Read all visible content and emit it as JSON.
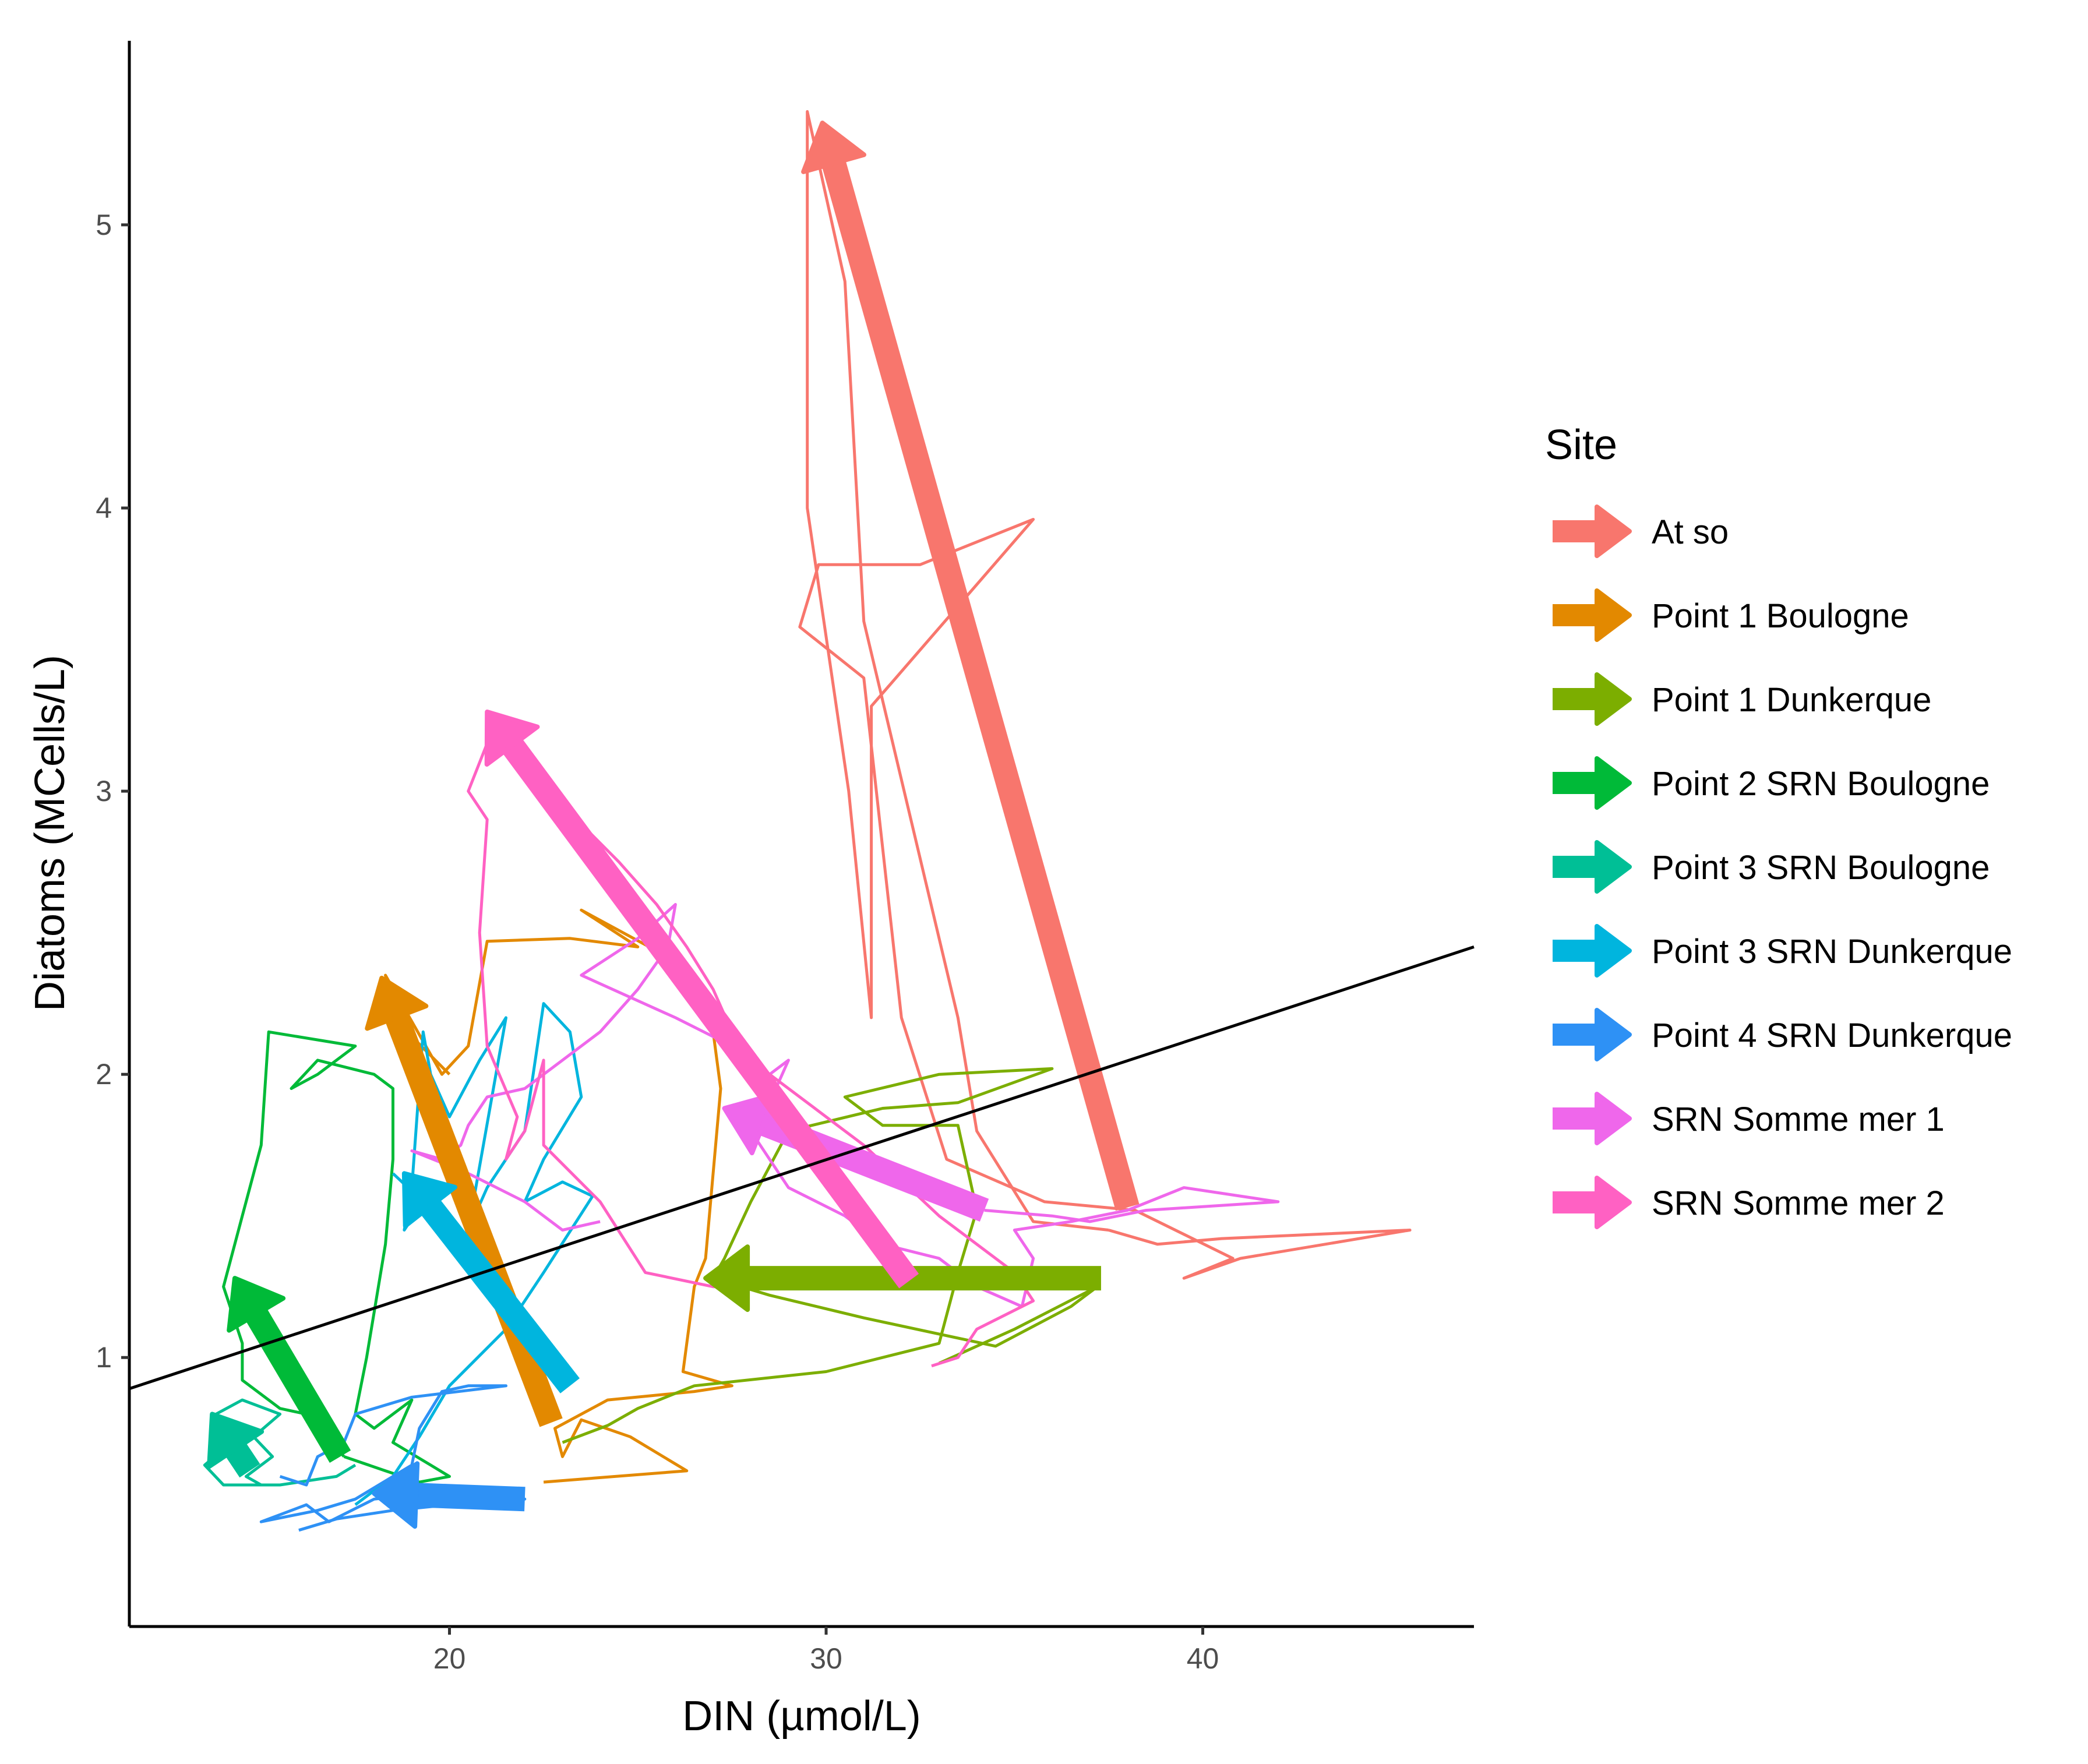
{
  "chart_data": {
    "type": "line",
    "title": "",
    "xlabel": "DIN (µmol/L)",
    "ylabel": "Diatoms (MCells/L)",
    "xlim": [
      11.5,
      47.2
    ],
    "ylim": [
      0.05,
      5.65
    ],
    "x_ticks": [
      {
        "value": 20,
        "label": "20"
      },
      {
        "value": 30,
        "label": "30"
      },
      {
        "value": 40,
        "label": "40"
      }
    ],
    "y_ticks": [
      {
        "value": 1,
        "label": "1"
      },
      {
        "value": 2,
        "label": "2"
      },
      {
        "value": 3,
        "label": "3"
      },
      {
        "value": 4,
        "label": "4"
      },
      {
        "value": 5,
        "label": "5"
      }
    ],
    "legend_title": "Site",
    "legend_position": "right",
    "regression_line": {
      "color": "#000000",
      "from": [
        11.5,
        0.89
      ],
      "to": [
        47.2,
        2.45
      ]
    },
    "series": [
      {
        "name": "At so",
        "color": "#F8766D",
        "path": [
          [
            37.5,
            1.45
          ],
          [
            38.8,
            1.4
          ],
          [
            40.5,
            1.42
          ],
          [
            45.5,
            1.45
          ],
          [
            41.0,
            1.35
          ],
          [
            39.5,
            1.28
          ],
          [
            40.8,
            1.35
          ],
          [
            38.2,
            1.52
          ],
          [
            35.8,
            1.55
          ],
          [
            33.2,
            1.7
          ],
          [
            32.0,
            2.2
          ],
          [
            31.0,
            3.4
          ],
          [
            29.3,
            3.58
          ],
          [
            29.8,
            3.8
          ],
          [
            31.2,
            3.8
          ],
          [
            32.5,
            3.8
          ],
          [
            35.5,
            3.96
          ],
          [
            31.2,
            3.3
          ],
          [
            31.2,
            2.2
          ],
          [
            30.6,
            3.0
          ],
          [
            29.5,
            4.0
          ],
          [
            29.5,
            5.4
          ],
          [
            30.5,
            4.8
          ],
          [
            31.0,
            3.6
          ],
          [
            33.5,
            2.2
          ],
          [
            34.0,
            1.8
          ],
          [
            35.5,
            1.48
          ],
          [
            37.5,
            1.45
          ]
        ],
        "arrow": {
          "from": [
            38.0,
            1.53
          ],
          "to": [
            29.9,
            5.36
          ]
        }
      },
      {
        "name": "Point 1 Boulogne",
        "color": "#E38900",
        "path": [
          [
            22.5,
            0.56
          ],
          [
            26.3,
            0.6
          ],
          [
            24.8,
            0.72
          ],
          [
            23.5,
            0.78
          ],
          [
            23.0,
            0.65
          ],
          [
            22.8,
            0.75
          ],
          [
            24.2,
            0.85
          ],
          [
            26.5,
            0.88
          ],
          [
            27.5,
            0.9
          ],
          [
            26.2,
            0.95
          ],
          [
            26.5,
            1.25
          ],
          [
            26.8,
            1.35
          ],
          [
            27.2,
            1.95
          ],
          [
            27.0,
            2.15
          ],
          [
            26.0,
            2.4
          ],
          [
            23.5,
            2.58
          ],
          [
            25.0,
            2.45
          ],
          [
            23.2,
            2.48
          ],
          [
            21.0,
            2.47
          ],
          [
            20.5,
            2.1
          ],
          [
            19.8,
            2.0
          ],
          [
            18.3,
            2.35
          ],
          [
            18.5,
            2.2
          ],
          [
            20.0,
            2.0
          ]
        ],
        "arrow": {
          "from": [
            22.7,
            0.77
          ],
          "to": [
            18.2,
            2.34
          ]
        }
      },
      {
        "name": "Point 1 Dunkerque",
        "color": "#7CAE00",
        "path": [
          [
            23.0,
            0.7
          ],
          [
            24.2,
            0.76
          ],
          [
            25.0,
            0.82
          ],
          [
            26.5,
            0.9
          ],
          [
            30.0,
            0.95
          ],
          [
            33.0,
            1.05
          ],
          [
            33.5,
            1.3
          ],
          [
            34.0,
            1.52
          ],
          [
            33.5,
            1.82
          ],
          [
            31.5,
            1.82
          ],
          [
            30.5,
            1.92
          ],
          [
            33.0,
            2.0
          ],
          [
            36.0,
            2.02
          ],
          [
            33.5,
            1.9
          ],
          [
            31.5,
            1.88
          ],
          [
            29.0,
            1.8
          ],
          [
            28.0,
            1.55
          ],
          [
            27.3,
            1.35
          ],
          [
            27.0,
            1.28
          ],
          [
            28.5,
            1.22
          ],
          [
            31.0,
            1.14
          ],
          [
            34.5,
            1.04
          ],
          [
            36.5,
            1.18
          ],
          [
            37.2,
            1.25
          ],
          [
            35.0,
            1.1
          ],
          [
            33.0,
            0.98
          ]
        ],
        "arrow": {
          "from": [
            37.3,
            1.28
          ],
          "to": [
            26.8,
            1.28
          ]
        }
      },
      {
        "name": "Point 2 SRN Boulogne",
        "color": "#00BA38",
        "path": [
          [
            17.2,
            0.65
          ],
          [
            16.2,
            0.8
          ],
          [
            15.5,
            0.82
          ],
          [
            14.5,
            0.92
          ],
          [
            14.5,
            1.05
          ],
          [
            14.0,
            1.25
          ],
          [
            14.5,
            1.5
          ],
          [
            15.0,
            1.75
          ],
          [
            15.2,
            2.15
          ],
          [
            17.5,
            2.1
          ],
          [
            16.5,
            2.0
          ],
          [
            15.8,
            1.95
          ],
          [
            16.5,
            2.05
          ],
          [
            18.0,
            2.0
          ],
          [
            18.5,
            1.95
          ],
          [
            18.5,
            1.7
          ],
          [
            18.3,
            1.4
          ],
          [
            17.8,
            1.0
          ],
          [
            17.5,
            0.8
          ],
          [
            18.0,
            0.75
          ],
          [
            18.5,
            0.8
          ],
          [
            19.0,
            0.85
          ],
          [
            18.5,
            0.7
          ],
          [
            19.5,
            0.62
          ],
          [
            20.0,
            0.58
          ],
          [
            19.2,
            0.56
          ],
          [
            18.3,
            0.6
          ],
          [
            17.2,
            0.65
          ]
        ],
        "arrow": {
          "from": [
            17.1,
            0.65
          ],
          "to": [
            14.3,
            1.28
          ]
        }
      },
      {
        "name": "Point 3 SRN Boulogne",
        "color": "#00BF96",
        "path": [
          [
            15.0,
            0.55
          ],
          [
            14.6,
            0.58
          ],
          [
            15.3,
            0.65
          ],
          [
            14.8,
            0.72
          ],
          [
            15.5,
            0.8
          ],
          [
            14.5,
            0.85
          ],
          [
            13.8,
            0.8
          ],
          [
            14.2,
            0.7
          ],
          [
            13.5,
            0.62
          ],
          [
            14.0,
            0.55
          ],
          [
            15.5,
            0.55
          ],
          [
            17.0,
            0.58
          ],
          [
            17.5,
            0.62
          ]
        ],
        "arrow": {
          "from": [
            14.7,
            0.6
          ],
          "to": [
            13.7,
            0.8
          ]
        }
      },
      {
        "name": "Point 3 SRN Dunkerque",
        "color": "#00B5DE",
        "path": [
          [
            17.5,
            0.48
          ],
          [
            18.5,
            0.58
          ],
          [
            19.2,
            0.72
          ],
          [
            20.0,
            0.9
          ],
          [
            21.5,
            1.1
          ],
          [
            22.5,
            1.3
          ],
          [
            23.8,
            1.57
          ],
          [
            23.0,
            1.62
          ],
          [
            22.0,
            1.55
          ],
          [
            22.5,
            1.7
          ],
          [
            23.5,
            1.92
          ],
          [
            23.2,
            2.15
          ],
          [
            22.5,
            2.25
          ],
          [
            22.0,
            1.8
          ],
          [
            21.0,
            1.6
          ],
          [
            20.5,
            1.45
          ],
          [
            21.5,
            2.2
          ],
          [
            20.8,
            2.05
          ],
          [
            20.0,
            1.85
          ],
          [
            19.5,
            2.0
          ],
          [
            19.3,
            2.15
          ],
          [
            19.0,
            1.6
          ],
          [
            18.8,
            1.45
          ],
          [
            19.3,
            1.55
          ],
          [
            18.5,
            1.65
          ]
        ],
        "arrow": {
          "from": [
            23.2,
            0.9
          ],
          "to": [
            18.8,
            1.65
          ]
        }
      },
      {
        "name": "Point 4 SRN Dunkerque",
        "color": "#2E91F5",
        "path": [
          [
            16.0,
            0.39
          ],
          [
            17.0,
            0.43
          ],
          [
            18.5,
            0.46
          ],
          [
            20.0,
            0.48
          ],
          [
            22.0,
            0.5
          ],
          [
            19.5,
            0.52
          ],
          [
            18.0,
            0.5
          ],
          [
            16.8,
            0.42
          ],
          [
            16.2,
            0.48
          ],
          [
            15.0,
            0.42
          ],
          [
            16.5,
            0.46
          ],
          [
            17.5,
            0.5
          ],
          [
            19.0,
            0.62
          ],
          [
            19.2,
            0.75
          ],
          [
            19.8,
            0.88
          ],
          [
            20.5,
            0.9
          ],
          [
            21.5,
            0.9
          ],
          [
            19.0,
            0.86
          ],
          [
            17.5,
            0.8
          ],
          [
            17.2,
            0.7
          ],
          [
            16.5,
            0.65
          ],
          [
            16.2,
            0.55
          ],
          [
            15.5,
            0.58
          ]
        ],
        "arrow": {
          "from": [
            22.0,
            0.5
          ],
          "to": [
            18.0,
            0.52
          ]
        }
      },
      {
        "name": "SRN Somme mer 1",
        "color": "#EF67EB",
        "path": [
          [
            34.2,
            1.52
          ],
          [
            36.0,
            1.5
          ],
          [
            37.0,
            1.48
          ],
          [
            38.5,
            1.52
          ],
          [
            42.0,
            1.55
          ],
          [
            39.5,
            1.6
          ],
          [
            38.0,
            1.52
          ],
          [
            36.5,
            1.48
          ],
          [
            35.0,
            1.45
          ],
          [
            35.5,
            1.35
          ],
          [
            35.2,
            1.18
          ],
          [
            34.0,
            1.25
          ],
          [
            33.0,
            1.35
          ],
          [
            31.5,
            1.4
          ],
          [
            30.5,
            1.5
          ],
          [
            29.0,
            1.6
          ],
          [
            28.5,
            1.7
          ],
          [
            28.0,
            1.8
          ],
          [
            28.5,
            1.9
          ],
          [
            29.0,
            2.05
          ],
          [
            28.5,
            2.0
          ],
          [
            27.5,
            2.1
          ],
          [
            26.0,
            2.2
          ],
          [
            23.5,
            2.35
          ],
          [
            25.0,
            2.48
          ],
          [
            26.0,
            2.6
          ],
          [
            25.8,
            2.45
          ],
          [
            25.0,
            2.3
          ],
          [
            24.0,
            2.15
          ],
          [
            23.0,
            2.05
          ],
          [
            22.0,
            1.95
          ],
          [
            21.0,
            1.92
          ],
          [
            20.5,
            1.82
          ],
          [
            20.3,
            1.75
          ],
          [
            19.8,
            1.7
          ],
          [
            19.0,
            1.73
          ],
          [
            20.5,
            1.65
          ],
          [
            22.0,
            1.55
          ],
          [
            23.0,
            1.45
          ],
          [
            24.0,
            1.48
          ]
        ],
        "arrow": {
          "from": [
            34.2,
            1.52
          ],
          "to": [
            27.3,
            1.88
          ]
        }
      },
      {
        "name": "SRN Somme mer 2",
        "color": "#FF61C3",
        "path": [
          [
            32.0,
            1.27
          ],
          [
            30.0,
            1.25
          ],
          [
            27.0,
            1.25
          ],
          [
            25.2,
            1.3
          ],
          [
            24.0,
            1.55
          ],
          [
            22.5,
            1.75
          ],
          [
            22.5,
            2.05
          ],
          [
            22.0,
            1.8
          ],
          [
            21.5,
            1.7
          ],
          [
            21.8,
            1.85
          ],
          [
            21.0,
            2.1
          ],
          [
            20.8,
            2.5
          ],
          [
            21.0,
            2.9
          ],
          [
            20.5,
            3.0
          ],
          [
            21.3,
            3.27
          ],
          [
            22.0,
            3.15
          ],
          [
            23.0,
            2.95
          ],
          [
            24.5,
            2.75
          ],
          [
            25.5,
            2.6
          ],
          [
            26.3,
            2.45
          ],
          [
            27.0,
            2.3
          ],
          [
            27.5,
            2.15
          ],
          [
            28.0,
            2.05
          ],
          [
            29.0,
            1.95
          ],
          [
            30.0,
            1.85
          ],
          [
            31.0,
            1.75
          ],
          [
            33.0,
            1.5
          ],
          [
            35.0,
            1.3
          ],
          [
            35.5,
            1.2
          ],
          [
            34.0,
            1.1
          ],
          [
            33.5,
            1.0
          ],
          [
            32.8,
            0.97
          ]
        ],
        "arrow": {
          "from": [
            32.2,
            1.27
          ],
          "to": [
            21.0,
            3.28
          ]
        }
      }
    ]
  }
}
